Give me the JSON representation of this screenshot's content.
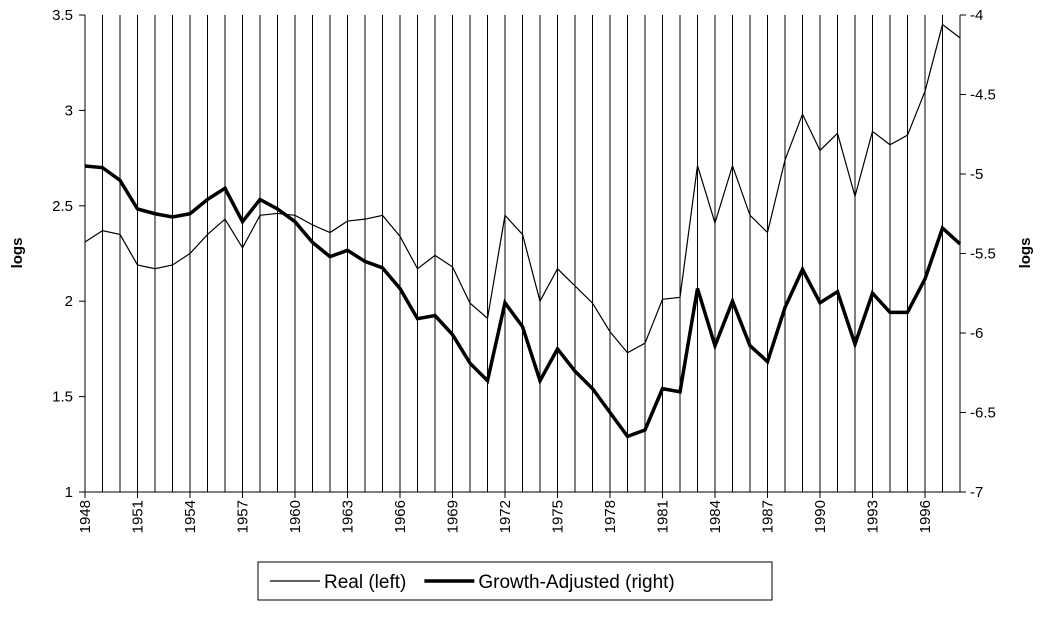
{
  "chart_data": {
    "type": "line",
    "x": [
      1948,
      1949,
      1950,
      1951,
      1952,
      1953,
      1954,
      1955,
      1956,
      1957,
      1958,
      1959,
      1960,
      1961,
      1962,
      1963,
      1964,
      1965,
      1966,
      1967,
      1968,
      1969,
      1970,
      1971,
      1972,
      1973,
      1974,
      1975,
      1976,
      1977,
      1978,
      1979,
      1980,
      1981,
      1982,
      1983,
      1984,
      1985,
      1986,
      1987,
      1988,
      1989,
      1990,
      1991,
      1992,
      1993,
      1994,
      1995,
      1996,
      1997,
      1998
    ],
    "series": [
      {
        "name": "Real (left)",
        "color": "#000000",
        "width": 1.2,
        "axis": "y",
        "values": [
          2.31,
          2.37,
          2.35,
          2.19,
          2.17,
          2.19,
          2.25,
          2.35,
          2.43,
          2.28,
          2.45,
          2.46,
          2.45,
          2.4,
          2.36,
          2.42,
          2.43,
          2.45,
          2.34,
          2.17,
          2.24,
          2.18,
          1.99,
          1.91,
          2.45,
          2.35,
          2.0,
          2.17,
          2.08,
          1.99,
          1.84,
          1.73,
          1.78,
          2.01,
          2.02,
          2.71,
          2.41,
          2.71,
          2.45,
          2.36,
          2.74,
          2.98,
          2.79,
          2.88,
          2.55,
          2.89,
          2.82,
          2.87,
          3.1,
          3.45,
          3.38
        ]
      },
      {
        "name": "Growth-Adjusted (right)",
        "color": "#000000",
        "width": 3.5,
        "axis": "y2",
        "values": [
          -4.95,
          -4.96,
          -5.04,
          -5.22,
          -5.25,
          -5.27,
          -5.25,
          -5.16,
          -5.09,
          -5.3,
          -5.16,
          -5.22,
          -5.3,
          -5.43,
          -5.52,
          -5.48,
          -5.55,
          -5.59,
          -5.72,
          -5.91,
          -5.89,
          -6.01,
          -6.19,
          -6.3,
          -5.81,
          -5.96,
          -6.3,
          -6.1,
          -6.24,
          -6.35,
          -6.5,
          -6.65,
          -6.61,
          -6.35,
          -6.37,
          -5.72,
          -6.08,
          -5.8,
          -6.08,
          -6.18,
          -5.84,
          -5.6,
          -5.81,
          -5.74,
          -6.07,
          -5.75,
          -5.87,
          -5.87,
          -5.66,
          -5.34,
          -5.44
        ]
      }
    ],
    "ylabel": "logs",
    "y2label": "logs",
    "xlim": [
      1948,
      1998
    ],
    "xticks": [
      1948,
      1951,
      1954,
      1957,
      1960,
      1963,
      1966,
      1969,
      1972,
      1975,
      1978,
      1981,
      1984,
      1987,
      1990,
      1993,
      1996
    ],
    "ylim": [
      1,
      3.5
    ],
    "yticks": [
      1,
      1.5,
      2,
      2.5,
      3,
      3.5
    ],
    "y2lim": [
      -7,
      -4
    ],
    "y2ticks": [
      -7,
      -6.5,
      -6,
      -5.5,
      -5,
      -4.5,
      -4
    ],
    "grid": "x",
    "legend": "bottom"
  }
}
